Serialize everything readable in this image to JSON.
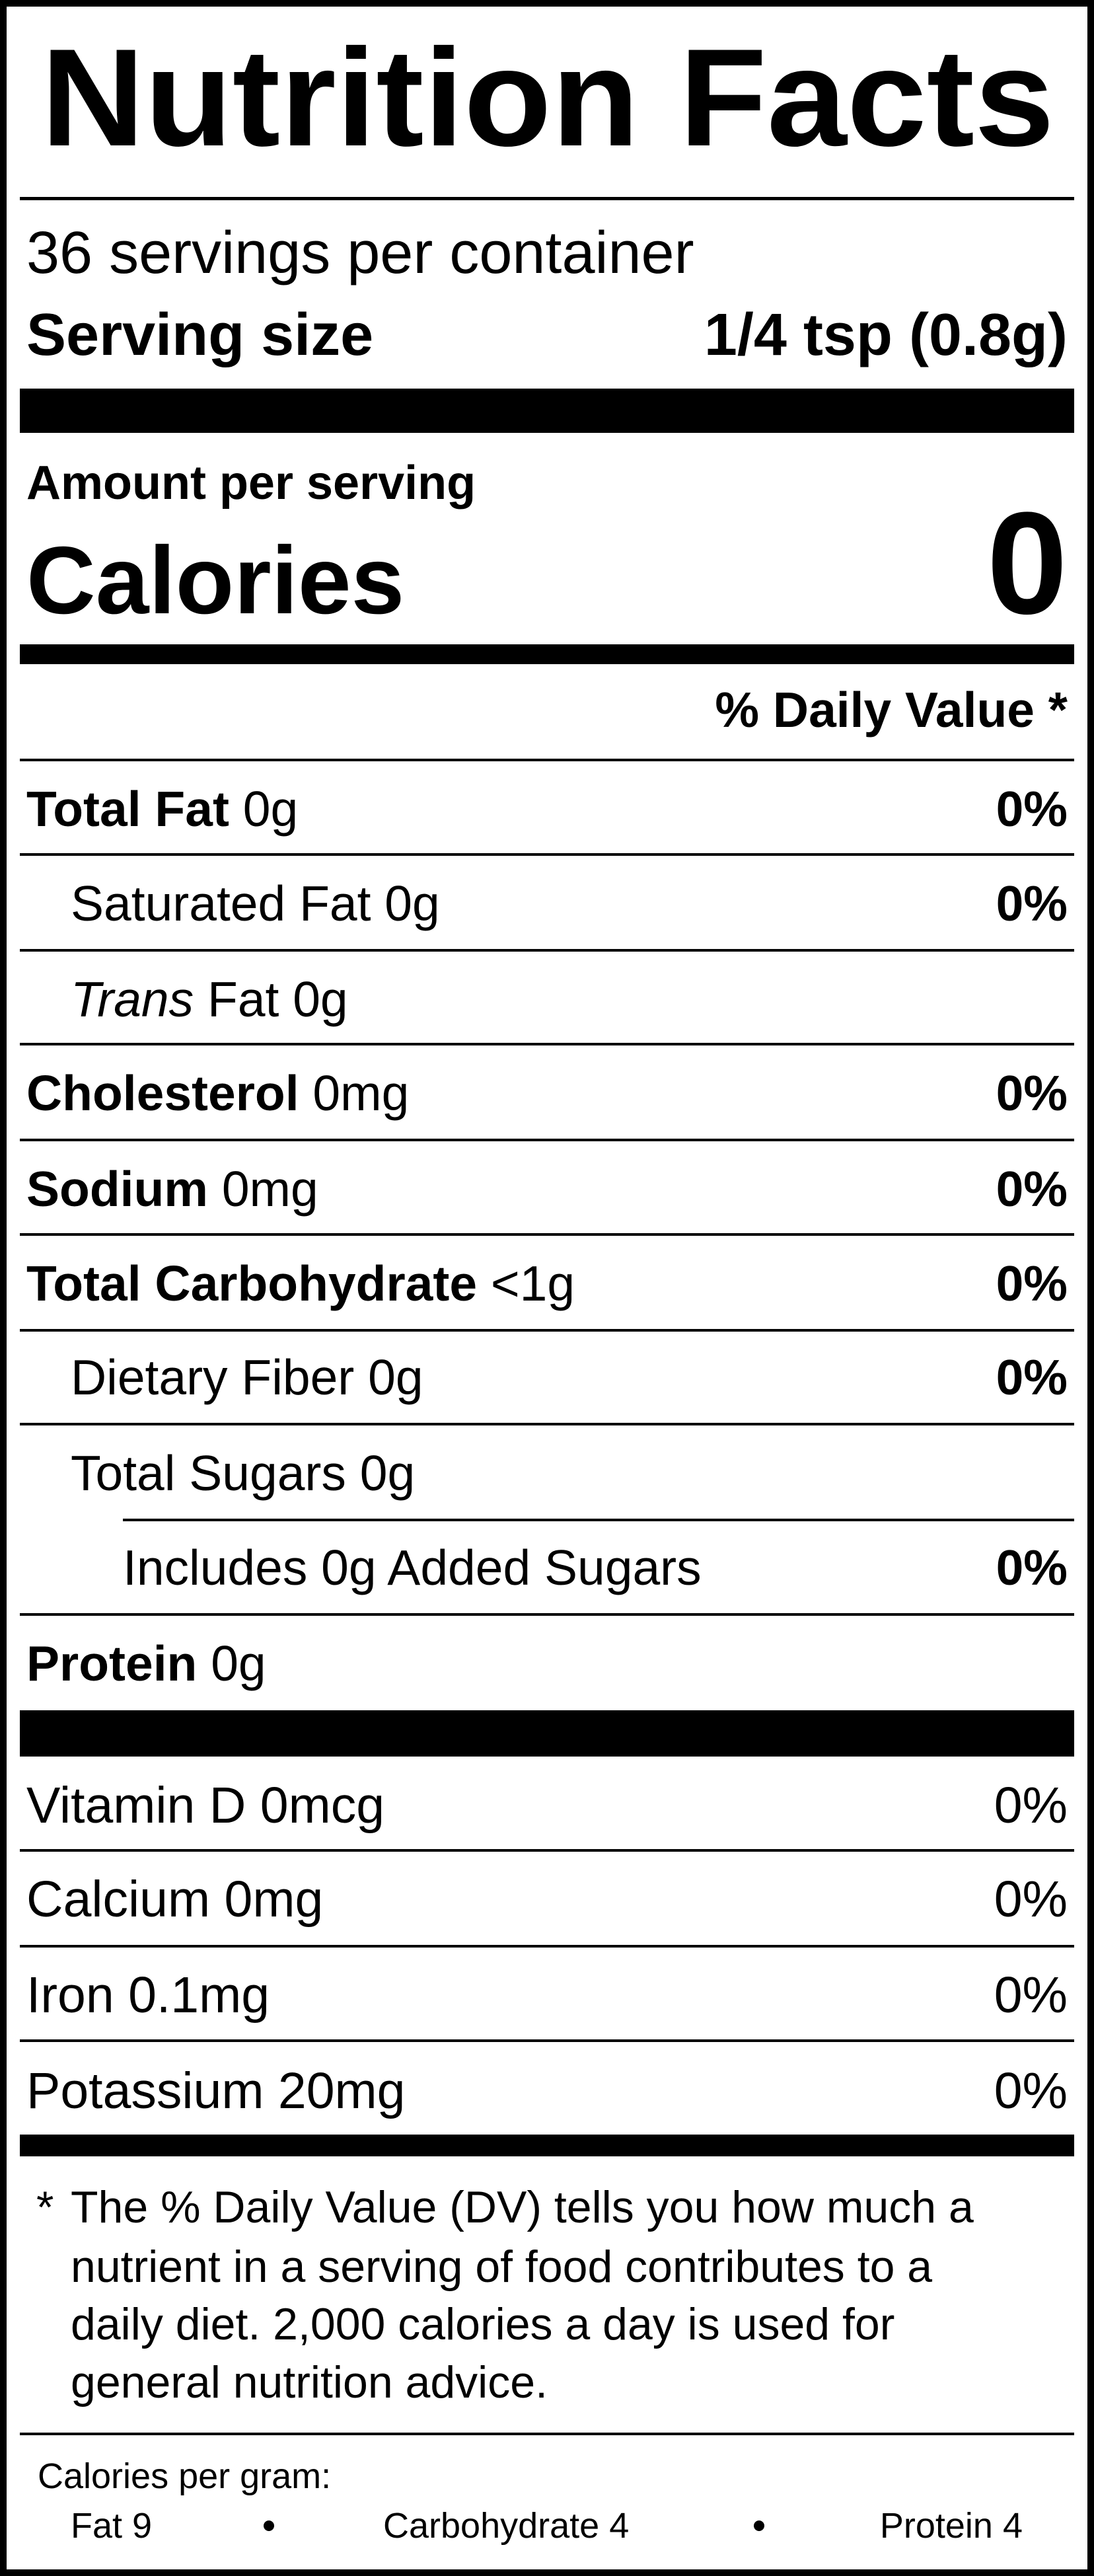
{
  "title": "Nutrition Facts",
  "servings": "36 servings per container",
  "serving_size": {
    "label": "Serving size",
    "value": "1/4 tsp (0.8g)"
  },
  "amount_per_serving": "Amount per serving",
  "calories": {
    "label": "Calories",
    "value": 0
  },
  "daily_value_header": "% Daily Value *",
  "nutrients": [
    {
      "name": "Total Fat",
      "amount": "0g",
      "dv": "0%"
    },
    {
      "name": "Saturated Fat",
      "amount": "0g",
      "dv": "0%"
    },
    {
      "name_italic": "Trans",
      "name": "Fat",
      "amount": "0g"
    },
    {
      "name": "Cholesterol",
      "amount": "0mg",
      "dv": "0%"
    },
    {
      "name": "Sodium",
      "amount": "0mg",
      "dv": "0%"
    },
    {
      "name": "Total Carbohydrate",
      "amount": "<1g",
      "dv": "0%"
    },
    {
      "name": "Dietary Fiber",
      "amount": "0g",
      "dv": "0%"
    },
    {
      "name": "Total Sugars",
      "amount": "0g"
    },
    {
      "text": "Includes 0g Added Sugars",
      "dv": "0%"
    },
    {
      "name": "Protein",
      "amount": "0g"
    }
  ],
  "vitamins": [
    {
      "name": "Vitamin D",
      "amount": "0mcg",
      "dv": "0%"
    },
    {
      "name": "Calcium",
      "amount": "0mg",
      "dv": "0%"
    },
    {
      "name": "Iron",
      "amount": "0.1mg",
      "dv": "0%"
    },
    {
      "name": "Potassium",
      "amount": "20mg",
      "dv": "0%"
    }
  ],
  "footnote": {
    "marker": "*",
    "lines": [
      "The % Daily Value (DV) tells you how much a",
      "nutrient in a serving of food contributes to a",
      "daily diet. 2,000 calories a day is used for",
      "general nutrition advice."
    ]
  },
  "calories_per_gram": {
    "label": "Calories per gram:",
    "items": [
      "Fat 9",
      "Carbohydrate 4",
      "Protein 4"
    ]
  }
}
